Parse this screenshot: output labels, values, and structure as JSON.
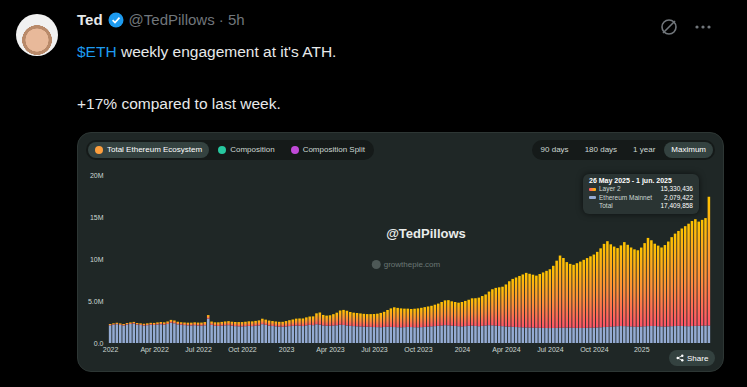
{
  "tweet": {
    "name": "Ted",
    "meta": "@TedPillows · 5h",
    "text_lines": [
      {
        "cashtag": "$ETH",
        "text": " weekly engagement at it's ATH."
      },
      {
        "text": "+17% compared to last week."
      }
    ]
  },
  "card": {
    "tabs": [
      "Total Ethereum Ecosystem",
      "Composition",
      "Composition Split"
    ],
    "selected_tab": "Total Ethereum Ecosystem",
    "ranges": [
      "90 days",
      "180 days",
      "1 year",
      "Maximum"
    ],
    "selected_range": "Maximum",
    "watermarks": [
      "@TedPillows",
      "growthepie.com"
    ],
    "tooltip": {
      "title": "26 May 2025 - 1 jun. 2025",
      "rows": [
        {
          "name": "Layer 2",
          "value": 15330436
        },
        {
          "name": "Ethereum Mainnet",
          "value": 2079422
        },
        {
          "name": "Total",
          "value": 17409858
        }
      ]
    },
    "share": "Share"
  },
  "chart_data": {
    "type": "bar",
    "stacked": true,
    "grid": false,
    "categories": [
      "2022",
      null,
      null,
      null,
      null,
      null,
      null,
      null,
      null,
      null,
      null,
      null,
      null,
      "Apr 2022",
      null,
      null,
      null,
      null,
      null,
      null,
      null,
      null,
      null,
      null,
      null,
      null,
      "Jul 2022",
      null,
      null,
      null,
      null,
      null,
      null,
      null,
      null,
      null,
      null,
      null,
      null,
      "Oct 2022",
      null,
      null,
      null,
      null,
      null,
      null,
      null,
      null,
      null,
      null,
      null,
      null,
      "2023",
      null,
      null,
      null,
      null,
      null,
      null,
      null,
      null,
      null,
      null,
      null,
      null,
      "Apr 2023",
      null,
      null,
      null,
      null,
      null,
      null,
      null,
      null,
      null,
      null,
      null,
      null,
      "Jul 2023",
      null,
      null,
      null,
      null,
      null,
      null,
      null,
      null,
      null,
      null,
      null,
      null,
      "Oct 2023",
      null,
      null,
      null,
      null,
      null,
      null,
      null,
      null,
      null,
      null,
      null,
      null,
      "2024",
      null,
      null,
      null,
      null,
      null,
      null,
      null,
      null,
      null,
      null,
      null,
      null,
      "Apr 2024",
      null,
      null,
      null,
      null,
      null,
      null,
      null,
      null,
      null,
      null,
      null,
      null,
      "Jul 2024",
      null,
      null,
      null,
      null,
      null,
      null,
      null,
      null,
      null,
      null,
      null,
      null,
      "Oct 2024",
      null,
      null,
      null,
      null,
      null,
      null,
      null,
      null,
      null,
      null,
      null,
      null,
      null,
      "2025",
      null,
      null,
      null,
      null,
      null,
      null,
      null,
      null,
      null,
      null,
      null,
      null,
      null,
      null,
      null,
      null,
      null,
      null,
      null,
      null
    ],
    "series": [
      {
        "name": "Layer 2",
        "color": "#ffc300",
        "values": [
          150000,
          160000,
          170000,
          180000,
          170000,
          180000,
          190000,
          200000,
          190000,
          200000,
          210000,
          220000,
          230000,
          240000,
          250000,
          270000,
          280000,
          300000,
          340000,
          330000,
          310000,
          300000,
          310000,
          320000,
          330000,
          340000,
          350000,
          370000,
          380000,
          420000,
          400000,
          410000,
          430000,
          440000,
          460000,
          480000,
          470000,
          490000,
          500000,
          510000,
          530000,
          550000,
          560000,
          580000,
          600000,
          650000,
          620000,
          600000,
          590000,
          570000,
          560000,
          580000,
          640000,
          700000,
          760000,
          820000,
          860000,
          900000,
          950000,
          1000000,
          1050000,
          1300000,
          1450000,
          1250000,
          1200000,
          1250000,
          1350000,
          1500000,
          1700000,
          1800000,
          1750000,
          1650000,
          1600000,
          1580000,
          1550000,
          1520000,
          1500000,
          1520000,
          1550000,
          1600000,
          1700000,
          1800000,
          2000000,
          2200000,
          2350000,
          2300000,
          2250000,
          2200000,
          2180000,
          2150000,
          2200000,
          2250000,
          2300000,
          2350000,
          2400000,
          2450000,
          2550000,
          2650000,
          2800000,
          2950000,
          3000000,
          2900000,
          2850000,
          2800000,
          2900000,
          3000000,
          3100000,
          3250000,
          3300000,
          3400000,
          3550000,
          3700000,
          4000000,
          4300000,
          4500000,
          4600000,
          4700000,
          5000000,
          5400000,
          5700000,
          5900000,
          6100000,
          6300000,
          6500000,
          6400000,
          6300000,
          6200000,
          6400000,
          6600000,
          6800000,
          7000000,
          7400000,
          8000000,
          8600000,
          8300000,
          7800000,
          7600000,
          7500000,
          7700000,
          7900000,
          8100000,
          8300000,
          8500000,
          8700000,
          9000000,
          9400000,
          9900000,
          10200000,
          9800000,
          9500000,
          9300000,
          9600000,
          10000000,
          9700000,
          9400000,
          9200000,
          9100000,
          9400000,
          9900000,
          10500000,
          10200000,
          9800000,
          9600000,
          9400000,
          9700000,
          10100000,
          10600000,
          11000000,
          11300000,
          11600000,
          11900000,
          12200000,
          12500000,
          12700000,
          12400000,
          12600000,
          12800000,
          15330436
        ]
      },
      {
        "name": "Ethereum Mainnet",
        "color": "#94abd3",
        "values": [
          2110000,
          2180000,
          2240000,
          2150000,
          2090000,
          2200000,
          2260000,
          2310000,
          2190000,
          2140000,
          2080000,
          2120000,
          2170000,
          2150000,
          2200000,
          2230000,
          2180000,
          2260000,
          2410000,
          2350000,
          2220000,
          2170000,
          2130000,
          2100000,
          2090000,
          2120000,
          2080000,
          2060000,
          2110000,
          2900000,
          2150000,
          2050000,
          2030000,
          2070000,
          2100000,
          2120000,
          2060000,
          2010000,
          1990000,
          1980000,
          2000000,
          2030000,
          2010000,
          2050000,
          2090000,
          2240000,
          2160000,
          2070000,
          2020000,
          1990000,
          1960000,
          1940000,
          1970000,
          2010000,
          2040000,
          2080000,
          2060000,
          2020000,
          2100000,
          2150000,
          2120000,
          2230000,
          2180000,
          2090000,
          2060000,
          2050000,
          2080000,
          2110000,
          2170000,
          2140000,
          2090000,
          2040000,
          2010000,
          1990000,
          1970000,
          1950000,
          1940000,
          1920000,
          1900000,
          1890000,
          1880000,
          1910000,
          1930000,
          1920000,
          1900000,
          1880000,
          1870000,
          1890000,
          1910000,
          1900000,
          1880000,
          1870000,
          1890000,
          1920000,
          1950000,
          1980000,
          2010000,
          2040000,
          2080000,
          2120000,
          2100000,
          2060000,
          2030000,
          2000000,
          1980000,
          2010000,
          2050000,
          2070000,
          2030000,
          2000000,
          2040000,
          2080000,
          2120000,
          2100000,
          2060000,
          2030000,
          2000000,
          1970000,
          1950000,
          1930000,
          1900000,
          1880000,
          1860000,
          1850000,
          1840000,
          1830000,
          1820000,
          1810000,
          1800000,
          1790000,
          1780000,
          1790000,
          1800000,
          1810000,
          1820000,
          1830000,
          1820000,
          1810000,
          1800000,
          1790000,
          1800000,
          1810000,
          1820000,
          1830000,
          1850000,
          1870000,
          1900000,
          1920000,
          1950000,
          1980000,
          2000000,
          2020000,
          2010000,
          1990000,
          1970000,
          1950000,
          1940000,
          1960000,
          1990000,
          2010000,
          2030000,
          2020000,
          1990000,
          1970000,
          1960000,
          1980000,
          2000000,
          2020000,
          2040000,
          2030000,
          2010000,
          2000000,
          2020000,
          2040000,
          2050000,
          2060000,
          2070000,
          2079422
        ]
      }
    ],
    "ylim": [
      0,
      20000000
    ],
    "yticks": [
      {
        "value": 0,
        "label": "0.0"
      },
      {
        "value": 5000000,
        "label": "5.0M"
      },
      {
        "value": 10000000,
        "label": "10M"
      },
      {
        "value": 15000000,
        "label": "15M"
      },
      {
        "value": 20000000,
        "label": "20M"
      }
    ]
  }
}
